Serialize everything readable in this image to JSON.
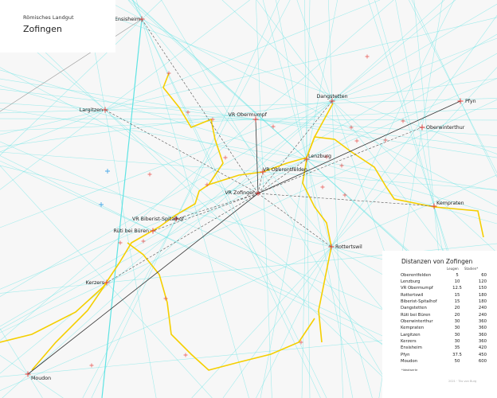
{
  "header": {
    "subtitle": "Römisches Landgut",
    "title": "Zofingen"
  },
  "center": {
    "name": "VR Zofingen"
  },
  "places": [
    {
      "name": "Ensisheim"
    },
    {
      "name": "Largitzen"
    },
    {
      "name": "VR Obermumpf"
    },
    {
      "name": "Dangstetten"
    },
    {
      "name": "Pfyn"
    },
    {
      "name": "Oberwinterthur"
    },
    {
      "name": "Lenzburg"
    },
    {
      "name": "VR Oberentfelden"
    },
    {
      "name": "Kempraten"
    },
    {
      "name": "Rottertswil"
    },
    {
      "name": "VR Biberist-Spitalhof"
    },
    {
      "name": "Rüti bei Büren"
    },
    {
      "name": "Kerzers"
    },
    {
      "name": "Moudon"
    }
  ],
  "table": {
    "title": "Distanzen von Zofingen",
    "col_leugen": "Leugen",
    "col_stadien": "Stadien*",
    "rows": [
      [
        "Oberentfelden",
        "5",
        "60"
      ],
      [
        "Lenzburg",
        "10",
        "120"
      ],
      [
        "VR Obermumpf",
        "12.5",
        "150"
      ],
      [
        "Rottertswil",
        "15",
        "180"
      ],
      [
        "Biberist-Spitalhof",
        "15",
        "180"
      ],
      [
        "Dangstetten",
        "20",
        "240"
      ],
      [
        "Rüti bei Büren",
        "20",
        "240"
      ],
      [
        "Oberwinterthur",
        "30",
        "360"
      ],
      [
        "Kempraten",
        "30",
        "360"
      ],
      [
        "Largitzen",
        "30",
        "360"
      ],
      [
        "Kerzers",
        "30",
        "360"
      ],
      [
        "Ensisheim",
        "35",
        "420"
      ],
      [
        "Pfyn",
        "37.5",
        "450"
      ],
      [
        "Moudon",
        "50",
        "600"
      ]
    ],
    "note": "*Idealwerte",
    "credit": "2021 · Tilo von Burg"
  },
  "colors": {
    "lines": "#5fe3e3",
    "river": "#f5cf00",
    "marker": "#e53935",
    "dash": "#555555"
  }
}
